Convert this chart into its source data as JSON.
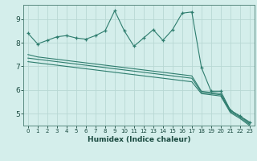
{
  "xlabel": "Humidex (Indice chaleur)",
  "bg_color": "#d4eeeb",
  "grid_color": "#b8d8d4",
  "line_color": "#2e7d6e",
  "xlim": [
    -0.5,
    23.5
  ],
  "ylim": [
    4.5,
    9.6
  ],
  "xticks": [
    0,
    1,
    2,
    3,
    4,
    5,
    6,
    7,
    8,
    9,
    10,
    11,
    12,
    13,
    14,
    15,
    16,
    17,
    18,
    19,
    20,
    21,
    22,
    23
  ],
  "yticks": [
    5,
    6,
    7,
    8,
    9
  ],
  "series": [
    {
      "y": [
        8.4,
        7.95,
        8.1,
        8.25,
        8.3,
        8.2,
        8.15,
        8.3,
        8.5,
        9.35,
        8.5,
        7.85,
        8.2,
        8.55,
        8.1,
        8.55,
        9.25,
        9.3,
        6.95,
        5.95,
        5.95,
        5.15,
        4.9,
        4.65
      ],
      "marker": true
    },
    {
      "y": [
        7.5,
        7.4,
        7.35,
        7.3,
        7.25,
        7.2,
        7.15,
        7.1,
        7.05,
        7.0,
        6.95,
        6.9,
        6.85,
        6.8,
        6.75,
        6.7,
        6.65,
        6.6,
        5.95,
        5.9,
        5.85,
        5.15,
        4.9,
        4.6
      ],
      "marker": false
    },
    {
      "y": [
        7.35,
        7.3,
        7.25,
        7.2,
        7.15,
        7.1,
        7.05,
        7.0,
        6.95,
        6.9,
        6.85,
        6.8,
        6.75,
        6.7,
        6.65,
        6.6,
        6.55,
        6.5,
        5.9,
        5.85,
        5.8,
        5.1,
        4.85,
        4.55
      ],
      "marker": false
    },
    {
      "y": [
        7.2,
        7.15,
        7.1,
        7.05,
        7.0,
        6.95,
        6.9,
        6.85,
        6.8,
        6.75,
        6.7,
        6.65,
        6.6,
        6.55,
        6.5,
        6.45,
        6.4,
        6.35,
        5.85,
        5.8,
        5.75,
        5.05,
        4.8,
        4.5
      ],
      "marker": false
    }
  ]
}
